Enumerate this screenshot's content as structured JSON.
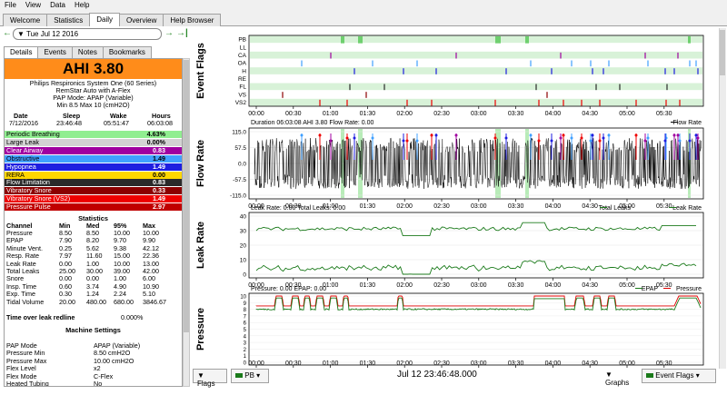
{
  "menu": [
    "File",
    "View",
    "Data",
    "Help"
  ],
  "main_tabs": [
    "Welcome",
    "Statistics",
    "Daily",
    "Overview",
    "Help Browser"
  ],
  "active_tab": "Daily",
  "date_nav": {
    "date": "Tue Jul 12 2016"
  },
  "left_tabs": [
    "Details",
    "Events",
    "Notes",
    "Bookmarks"
  ],
  "ahi": "AHI 3.80",
  "device": {
    "line1": "Philips Respironics System One (60 Series)",
    "line2": "RemStar Auto with A-Flex",
    "line3": "PAP Mode: APAP (Variable)",
    "line4": "Min 8.5 Max 10 (cmH2O)"
  },
  "session": {
    "headers": [
      "Date",
      "Sleep",
      "Wake",
      "Hours"
    ],
    "values": [
      "7/12/2016",
      "23:46:48",
      "05:51:47",
      "06:03:08"
    ]
  },
  "events": [
    {
      "label": "Periodic Breathing",
      "value": "4.63%",
      "color": "#90ee90"
    },
    {
      "label": "Large Leak",
      "value": "0.00%",
      "color": "#d3d3d3"
    },
    {
      "label": "Clear Airway",
      "value": "0.83",
      "color": "#a000a0"
    },
    {
      "label": "Obstructive",
      "value": "1.49",
      "color": "#40a0ff"
    },
    {
      "label": "Hypopnea",
      "value": "1.49",
      "color": "#1e1ee0"
    },
    {
      "label": "RERA",
      "value": "0.00",
      "color": "#ffd700"
    },
    {
      "label": "Flow Limitation",
      "value": "0.83",
      "color": "#2a2a2a"
    },
    {
      "label": "Vibratory Snore",
      "value": "0.33",
      "color": "#8b0000"
    },
    {
      "label": "Vibratory Snore (VS2)",
      "value": "1.49",
      "color": "#ee0000"
    },
    {
      "label": "Pressure Pulse",
      "value": "2.97",
      "color": "#c00000"
    }
  ],
  "stats": {
    "title": "Statistics",
    "headers": [
      "Channel",
      "Min",
      "Med",
      "95%",
      "Max"
    ],
    "rows": [
      [
        "Pressure",
        "8.50",
        "8.50",
        "10.00",
        "10.00"
      ],
      [
        "EPAP",
        "7.90",
        "8.20",
        "9.70",
        "9.90"
      ],
      [
        "Minute Vent.",
        "0.25",
        "5.62",
        "9.38",
        "42.12"
      ],
      [
        "Resp. Rate",
        "7.97",
        "11.60",
        "15.00",
        "22.36"
      ],
      [
        "Leak Rate",
        "0.00",
        "1.00",
        "10.00",
        "13.00"
      ],
      [
        "Total Leaks",
        "25.00",
        "30.00",
        "39.00",
        "42.00"
      ],
      [
        "Snore",
        "0.00",
        "0.00",
        "1.00",
        "6.00"
      ],
      [
        "Insp. Time",
        "0.60",
        "3.74",
        "4.90",
        "10.90"
      ],
      [
        "Exp. Time",
        "0.30",
        "1.24",
        "2.24",
        "5.10"
      ],
      [
        "Tidal Volume",
        "20.00",
        "480.00",
        "680.00",
        "3846.67"
      ]
    ]
  },
  "leak_redline": {
    "label": "Time over leak redline",
    "value": "0.000%"
  },
  "machine": {
    "title": "Machine Settings",
    "rows": [
      [
        "PAP Mode",
        "APAP (Variable)"
      ],
      [
        "Pressure Min",
        "8.50 cmH2O"
      ],
      [
        "Pressure Max",
        "10.00 cmH2O"
      ],
      [
        "Flex Level",
        "x2"
      ],
      [
        "Flex Mode",
        "C-Flex"
      ],
      [
        "Heated Tubing",
        "No"
      ]
    ]
  },
  "graphs": {
    "time_ticks": [
      "00:00",
      "00:30",
      "01:00",
      "01:30",
      "02:00",
      "02:30",
      "03:00",
      "03:30",
      "04:00",
      "04:30",
      "05:00",
      "05:30"
    ],
    "event_flags": {
      "title": "Event Flags",
      "rows": [
        "PB",
        "LL",
        "CA",
        "OA",
        "H",
        "RE",
        "FL",
        "VS",
        "VS2"
      ]
    },
    "flow_rate": {
      "title": "Flow Rate",
      "header": "Duration 06:03:08 AHI 3.80 Flow Rate: 0.00",
      "legend": "Flow Rate",
      "yticks": [
        "115.0",
        "57.5",
        "0.0",
        "-57.5",
        "-115.0"
      ]
    },
    "leak_rate": {
      "title": "Leak Rate",
      "header": "Leak Rate: 0.00 Total Leaks: 0.00",
      "legend1": "Total Leaks",
      "legend2": "Leak Rate",
      "yticks": [
        "40",
        "30",
        "20",
        "10",
        "0"
      ]
    },
    "pressure": {
      "title": "Pressure",
      "header": "Pressure: 0.00 EPAP: 0.00",
      "legend1": "EPAP",
      "legend2": "Pressure",
      "yticks": [
        "10",
        "9",
        "8",
        "7",
        "6",
        "5",
        "4",
        "3",
        "2",
        "1",
        "0"
      ]
    }
  },
  "bottom": {
    "flags_label": "Flags",
    "flags_value": "PB",
    "timestamp": "Jul 12 23:46:48.000",
    "graphs_label": "Graphs",
    "graphs_value": "Event Flags"
  }
}
